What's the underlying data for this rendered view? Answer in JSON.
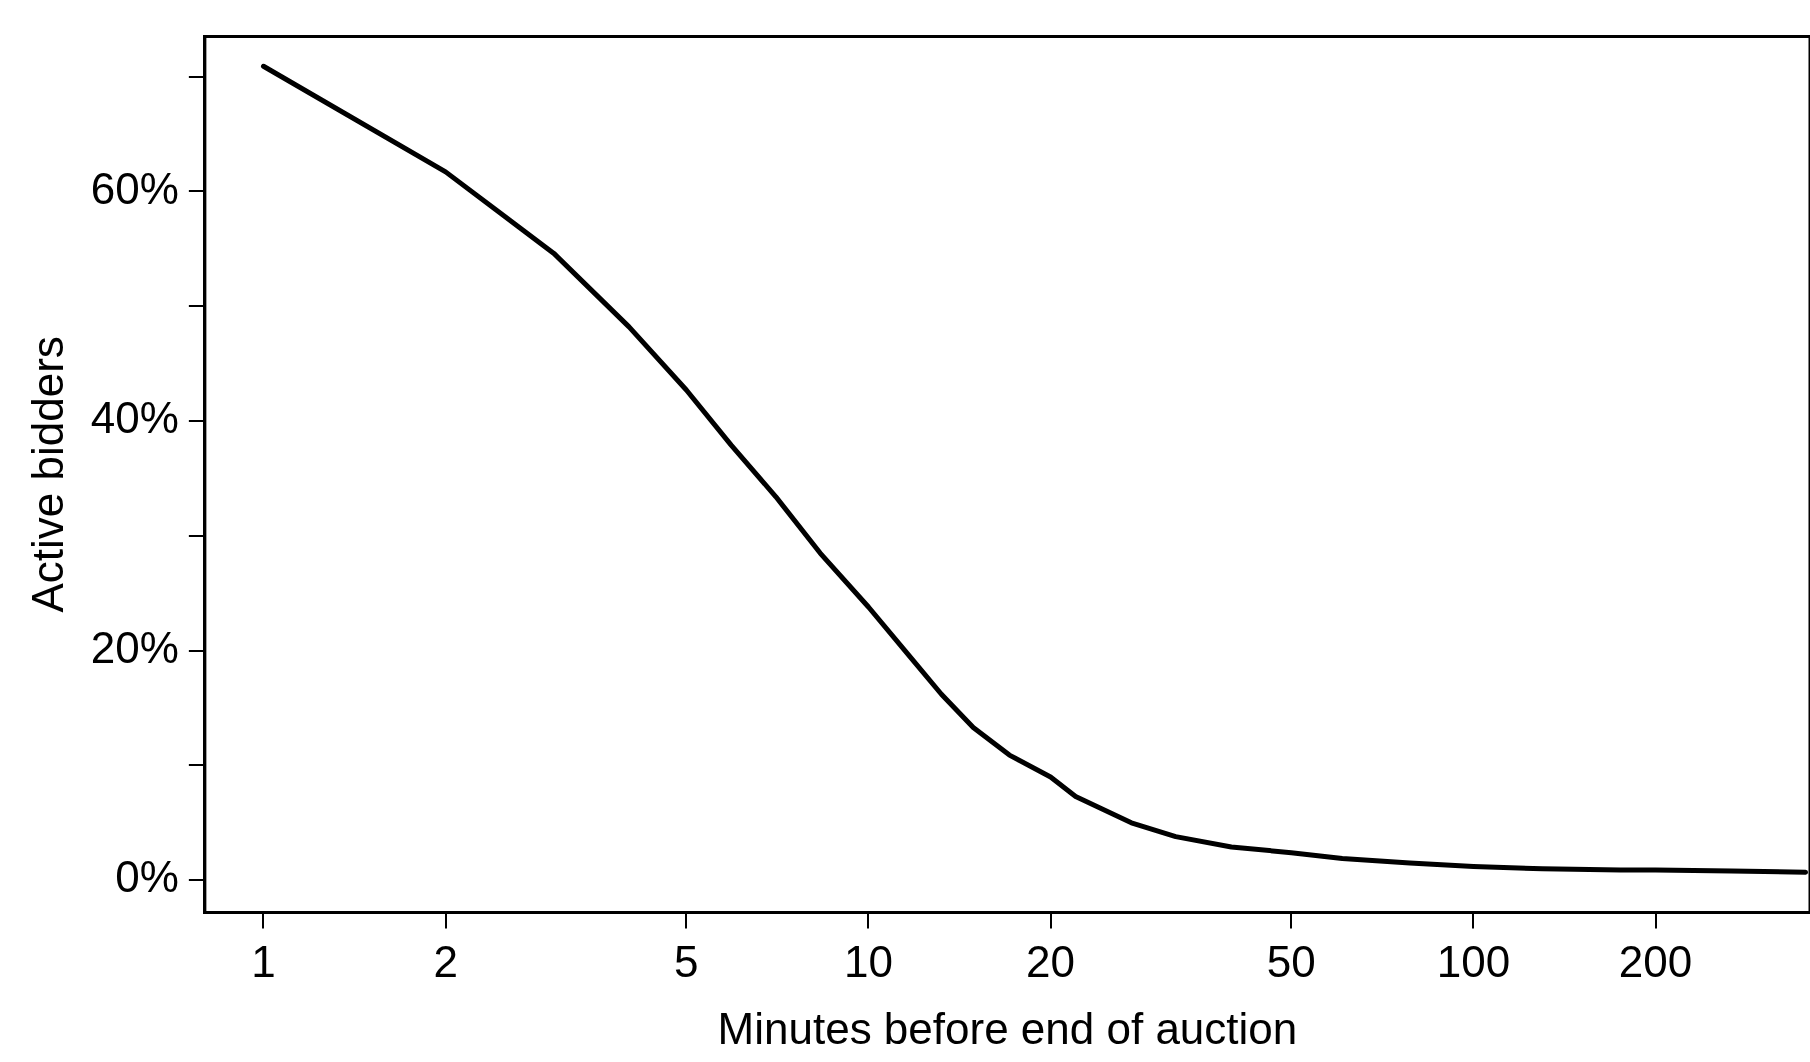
{
  "chart_data": {
    "type": "line",
    "xlabel": "Minutes before end of auction",
    "ylabel": "Active bidders",
    "x": [
      1,
      2,
      3.02,
      4.02,
      5,
      5.93,
      7.03,
      8.32,
      10,
      11.7,
      13.2,
      14.9,
      17.1,
      20,
      22,
      27.2,
      32.2,
      39.8,
      50,
      60.7,
      78.5,
      100,
      130,
      175,
      200,
      267,
      354
    ],
    "series": [
      {
        "color": "#000000",
        "values": [
          70.9,
          61.7,
          54.6,
          48.2,
          42.7,
          37.9,
          33.4,
          28.5,
          23.8,
          19.5,
          16.2,
          13.3,
          10.9,
          9.0,
          7.3,
          5.0,
          3.8,
          2.9,
          2.4,
          1.9,
          1.5,
          1.2,
          1.0,
          0.9,
          0.9,
          0.8,
          0.7
        ]
      }
    ],
    "log": "x",
    "xlim": [
      0.8,
      360
    ],
    "xticks": [
      1,
      2,
      5,
      10,
      20,
      50,
      100,
      200
    ],
    "ylim": [
      -2.8,
      73.5
    ],
    "yticks": [
      {
        "value": 0,
        "label": "0%"
      },
      {
        "value": 10,
        "label": null
      },
      {
        "value": 20,
        "label": "20%"
      },
      {
        "value": 30,
        "label": null
      },
      {
        "value": 40,
        "label": "40%"
      },
      {
        "value": 50,
        "label": null
      },
      {
        "value": 60,
        "label": "60%"
      },
      {
        "value": 70,
        "label": null
      }
    ],
    "grid": false,
    "legend": false,
    "marker": "none",
    "line_style": "solid"
  }
}
